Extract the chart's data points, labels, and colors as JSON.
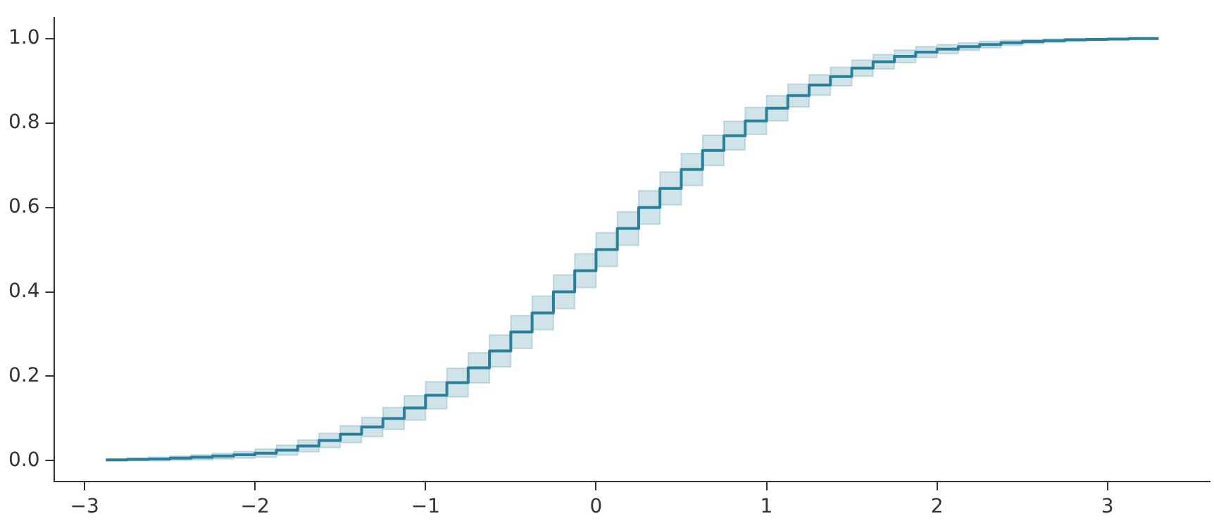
{
  "chart_data": {
    "type": "step",
    "x": [
      -2.875,
      -2.75,
      -2.625,
      -2.5,
      -2.375,
      -2.25,
      -2.125,
      -2.0,
      -1.875,
      -1.75,
      -1.625,
      -1.5,
      -1.375,
      -1.25,
      -1.125,
      -1.0,
      -0.875,
      -0.75,
      -0.625,
      -0.5,
      -0.375,
      -0.25,
      -0.125,
      0.0,
      0.125,
      0.25,
      0.375,
      0.5,
      0.625,
      0.75,
      0.875,
      1.0,
      1.125,
      1.25,
      1.375,
      1.5,
      1.625,
      1.75,
      1.875,
      2.0,
      2.125,
      2.25,
      2.375,
      2.5,
      2.625,
      2.75,
      2.875,
      3.0,
      3.125,
      3.3
    ],
    "series": [
      {
        "color": "#2a7f9a",
        "values": [
          0.002,
          0.003,
          0.004,
          0.006,
          0.008,
          0.011,
          0.014,
          0.018,
          0.025,
          0.035,
          0.048,
          0.063,
          0.08,
          0.1,
          0.125,
          0.155,
          0.185,
          0.22,
          0.26,
          0.305,
          0.35,
          0.4,
          0.45,
          0.5,
          0.55,
          0.6,
          0.645,
          0.69,
          0.735,
          0.77,
          0.805,
          0.835,
          0.865,
          0.89,
          0.91,
          0.93,
          0.945,
          0.958,
          0.968,
          0.975,
          0.981,
          0.986,
          0.99,
          0.993,
          0.995,
          0.997,
          0.998,
          0.999,
          1.0,
          1.0
        ],
        "lower": [
          0.0,
          0.0,
          0.0,
          0.001,
          0.002,
          0.004,
          0.006,
          0.008,
          0.013,
          0.021,
          0.031,
          0.043,
          0.057,
          0.074,
          0.096,
          0.123,
          0.151,
          0.184,
          0.222,
          0.266,
          0.31,
          0.36,
          0.41,
          0.46,
          0.51,
          0.56,
          0.606,
          0.652,
          0.699,
          0.736,
          0.773,
          0.805,
          0.838,
          0.866,
          0.888,
          0.911,
          0.928,
          0.943,
          0.955,
          0.964,
          0.972,
          0.978,
          0.984,
          0.988,
          0.991,
          0.994,
          0.996,
          0.998,
          0.999,
          0.999
        ],
        "upper": [
          0.004,
          0.006,
          0.008,
          0.011,
          0.014,
          0.018,
          0.022,
          0.028,
          0.037,
          0.049,
          0.065,
          0.083,
          0.103,
          0.126,
          0.154,
          0.187,
          0.219,
          0.256,
          0.298,
          0.344,
          0.39,
          0.44,
          0.49,
          0.54,
          0.59,
          0.64,
          0.684,
          0.728,
          0.771,
          0.804,
          0.837,
          0.865,
          0.892,
          0.914,
          0.932,
          0.949,
          0.962,
          0.973,
          0.981,
          0.986,
          0.99,
          0.994,
          0.996,
          0.998,
          0.999,
          1.0,
          1.0,
          1.0,
          1.0,
          1.0
        ]
      }
    ],
    "xlim": [
      -3.18,
      3.6
    ],
    "xticks": [
      {
        "value": -3,
        "label": "−3"
      },
      {
        "value": -2,
        "label": "−2"
      },
      {
        "value": -1,
        "label": "−1"
      },
      0,
      1,
      2,
      3
    ],
    "ylim": [
      -0.05,
      1.05
    ],
    "yticks": [
      {
        "value": 0,
        "label": "0.0"
      },
      0.2,
      0.4,
      0.6,
      0.8,
      {
        "value": 1,
        "label": "1.0"
      }
    ],
    "grid": false,
    "legend": false
  }
}
